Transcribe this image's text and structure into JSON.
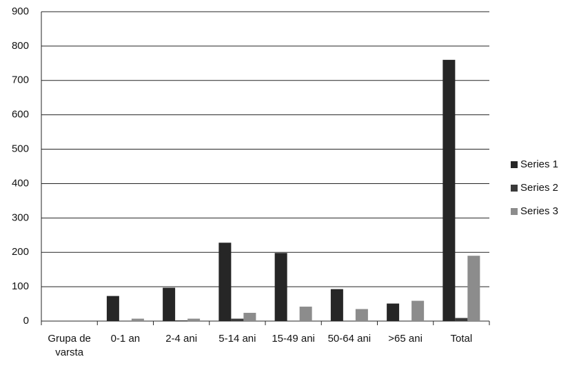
{
  "chart_data": {
    "type": "bar",
    "categories": [
      "Grupa de varsta",
      "0-1 an",
      "2-4 ani",
      "5-14 ani",
      "15-49 ani",
      "50-64 ani",
      ">65 ani",
      "Total"
    ],
    "series": [
      {
        "name": "Series 1",
        "color": "#262626",
        "values": [
          null,
          73,
          97,
          228,
          198,
          93,
          51,
          760
        ]
      },
      {
        "name": "Series 2",
        "color": "#3a3a3a",
        "values": [
          null,
          0,
          2,
          7,
          0,
          0,
          0,
          9
        ]
      },
      {
        "name": "Series 3",
        "color": "#8c8c8c",
        "values": [
          null,
          7,
          7,
          24,
          42,
          35,
          59,
          190
        ]
      }
    ],
    "ylim": [
      0,
      900
    ],
    "yticks": [
      0,
      100,
      200,
      300,
      400,
      500,
      600,
      700,
      800,
      900
    ],
    "grid": true,
    "legend": "right"
  }
}
